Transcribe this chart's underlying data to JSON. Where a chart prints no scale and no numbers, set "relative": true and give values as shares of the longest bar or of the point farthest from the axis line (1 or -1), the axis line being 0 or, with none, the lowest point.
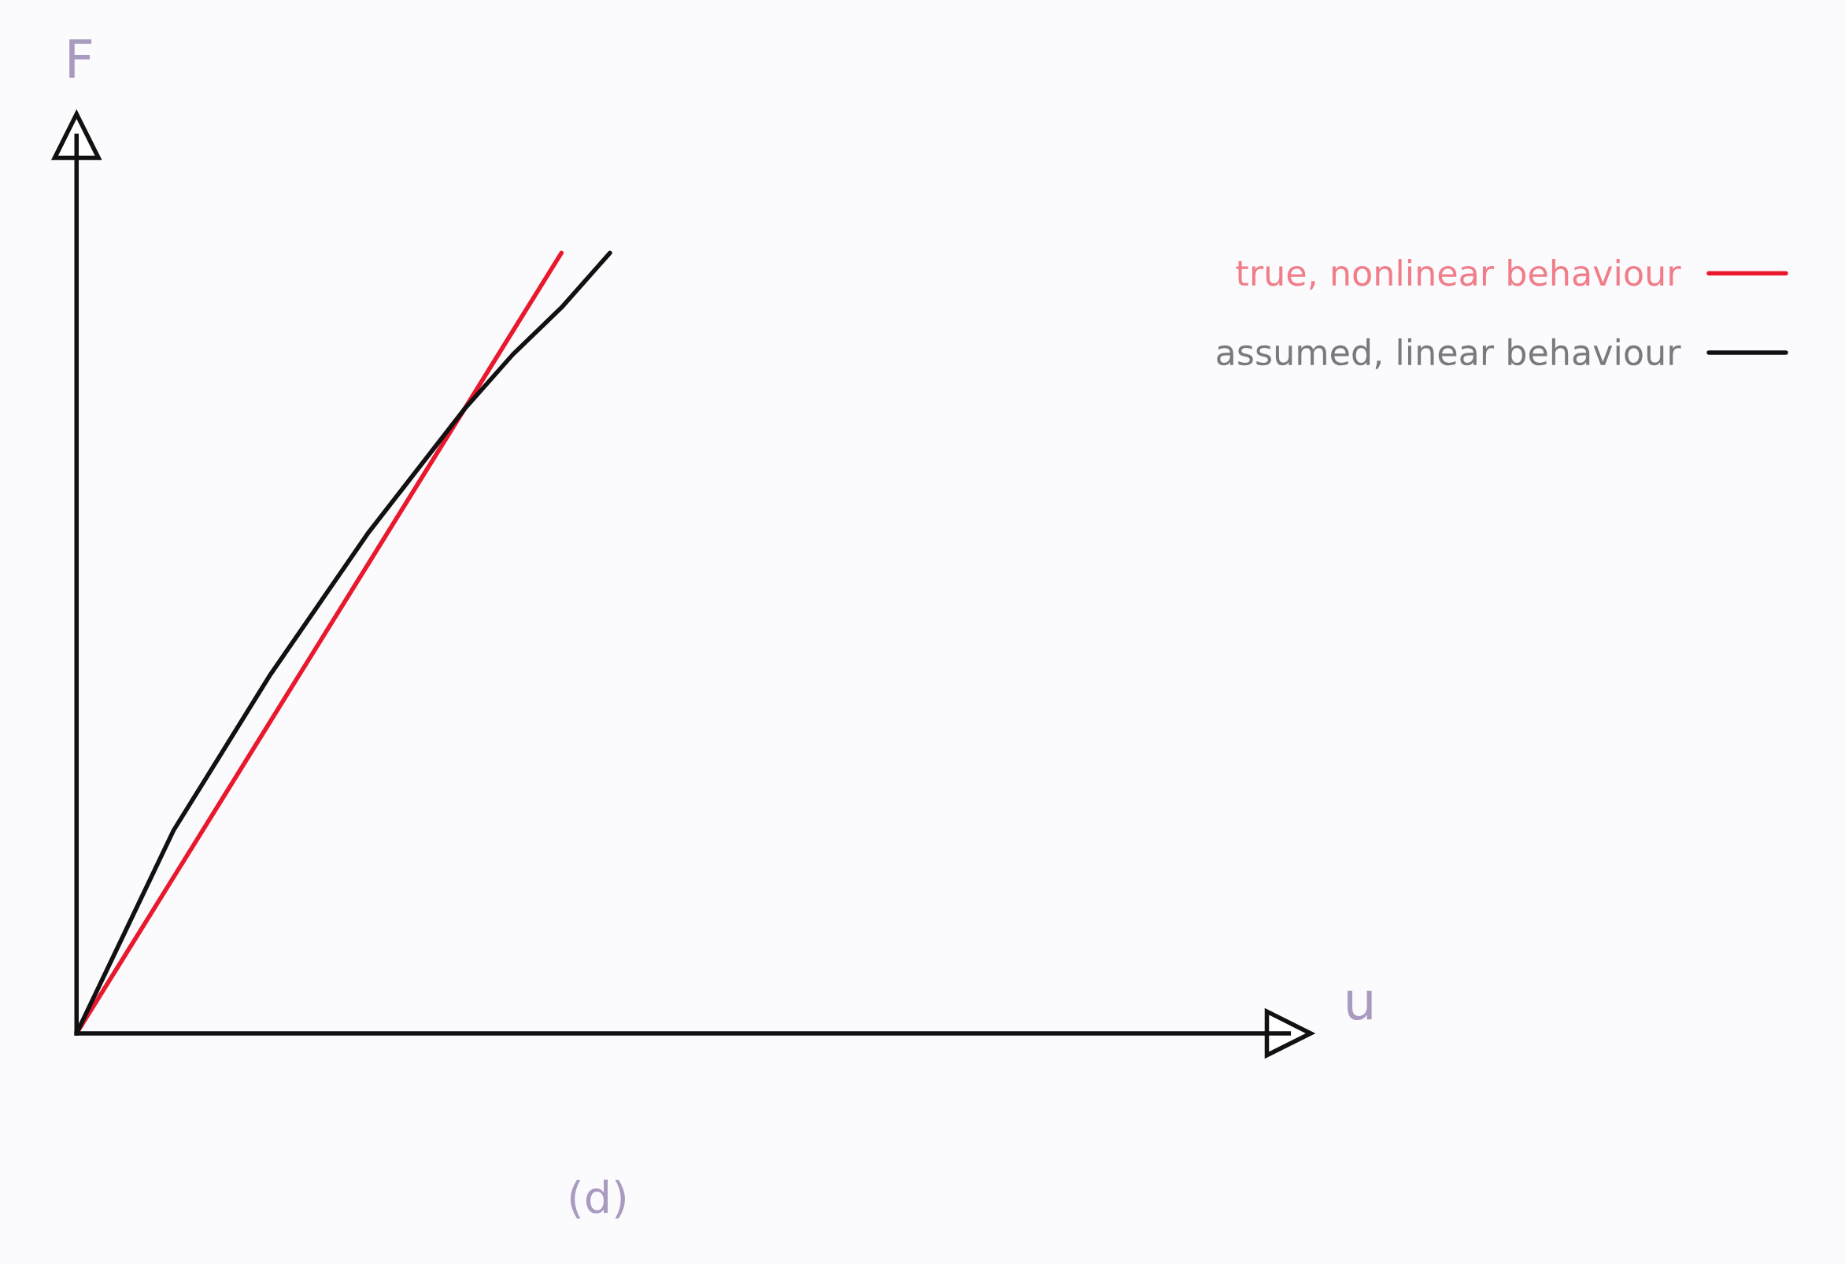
{
  "chart_data": {
    "type": "line",
    "relative": true,
    "xlabel": "u",
    "ylabel": "F",
    "annotations": [
      "(d)"
    ],
    "categories": [
      null,
      null,
      null,
      null,
      null,
      null,
      null,
      null,
      null,
      null,
      null,
      null,
      null,
      null,
      null,
      null,
      null,
      null,
      null,
      null,
      null,
      null,
      null,
      null,
      null
    ],
    "series": [
      {
        "name": "true, nonlinear behaviour",
        "color": "#e8192c",
        "values": [
          0,
          0.1,
          0.2,
          0.3,
          0.4,
          0.5,
          0.6,
          0.7,
          0.8,
          0.9,
          1.0,
          null,
          null,
          null,
          null,
          null,
          null,
          null,
          null,
          null,
          null,
          null,
          null,
          null,
          null
        ]
      },
      {
        "name": "assumed, linear behaviour",
        "color": "#111111",
        "values": [
          0,
          0.13,
          0.26,
          0.36,
          0.46,
          0.55,
          0.64,
          0.72,
          0.8,
          0.87,
          0.93,
          1.0,
          null,
          null,
          null,
          null,
          null,
          null,
          null,
          null,
          null,
          null,
          null,
          null,
          null
        ]
      }
    ],
    "legend": "top right",
    "marker": "none",
    "line_style": "solid"
  }
}
